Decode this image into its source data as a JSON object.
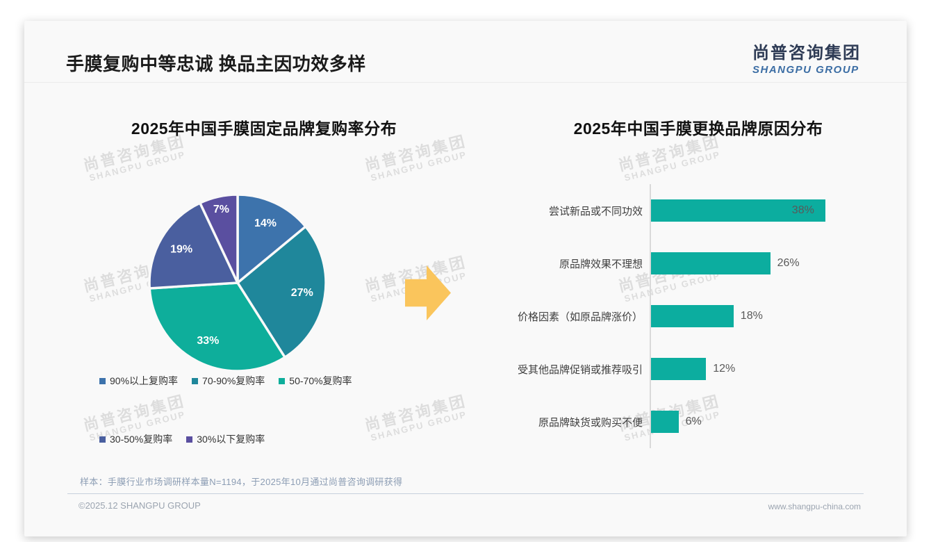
{
  "page": {
    "title": "手膜复购中等忠诚 换品主因功效多样",
    "logo": {
      "cn": "尚普咨询集团",
      "en": "SHANGPU GROUP"
    },
    "watermark": {
      "line1": "尚普咨询集团",
      "line2": "SHANGPU GROUP"
    },
    "footer": {
      "note": "样本：手膜行业市场调研样本量N=1194，于2025年10月通过尚普咨询调研获得",
      "copyright": "©2025.12 SHANGPU GROUP",
      "website": "www.shangpu-china.com"
    }
  },
  "chart_data": [
    {
      "type": "pie",
      "title": "2025年中国手膜固定品牌复购率分布",
      "labels": [
        "90%以上复购率",
        "70-90%复购率",
        "50-70%复购率",
        "30-50%复购率",
        "30%以下复购率"
      ],
      "values": [
        14,
        27,
        33,
        19,
        7
      ],
      "value_labels": [
        "14%",
        "27%",
        "33%",
        "19%",
        "7%"
      ],
      "colors": [
        "#3d73ac",
        "#1f879b",
        "#0eae9b",
        "#4a5f9f",
        "#5a4fa0"
      ],
      "start_angle_deg": 0,
      "direction": "clockwise",
      "legend_position": "bottom"
    },
    {
      "type": "bar",
      "title": "2025年中国手膜更换品牌原因分布",
      "orientation": "horizontal",
      "categories": [
        "尝试新品或不同功效",
        "原品牌效果不理想",
        "价格因素（如原品牌涨价）",
        "受其他品牌促销或推荐吸引",
        "原品牌缺货或购买不便"
      ],
      "values": [
        38,
        26,
        18,
        12,
        6
      ],
      "value_labels": [
        "38%",
        "26%",
        "18%",
        "12%",
        "6%"
      ],
      "bar_color": "#0cad9f",
      "xlim": [
        0,
        40
      ],
      "grid": false
    }
  ],
  "decor": {
    "arrow_color": "#fac55c"
  }
}
